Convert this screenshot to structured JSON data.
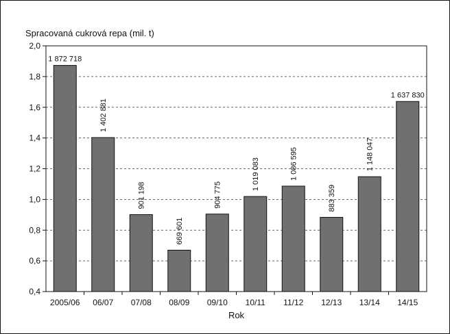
{
  "chart_data": {
    "type": "bar",
    "title": "Spracovaná cukrová repa (mil. t)",
    "xlabel": "Rok",
    "ylabel": "",
    "categories": [
      "2005/06",
      "06/07",
      "07/08",
      "08/09",
      "09/10",
      "10/11",
      "11/12",
      "12/13",
      "13/14",
      "14/15"
    ],
    "values": [
      1.872718,
      1.402881,
      0.901198,
      0.669601,
      0.904775,
      1.019083,
      1.086595,
      0.883359,
      1.148047,
      1.63783
    ],
    "data_labels": [
      "1 872 718",
      "1 402 881",
      "901 198",
      "669 601",
      "904 775",
      "1 019 083",
      "1 086 595",
      "883 359",
      "1 148 047",
      "1 637 830"
    ],
    "yticks": [
      "2,0",
      "1,8",
      "1,6",
      "1,4",
      "1,2",
      "1,0",
      "0,8",
      "0,6",
      "0,4"
    ],
    "ytick_values": [
      2.0,
      1.8,
      1.6,
      1.4,
      1.2,
      1.0,
      0.8,
      0.6,
      0.4
    ],
    "ylim": [
      0.4,
      2.0
    ],
    "grid": true,
    "bar_color": "#707070"
  }
}
